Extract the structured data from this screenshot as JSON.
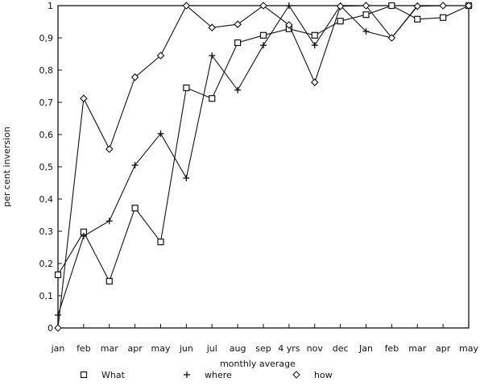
{
  "chart_data": {
    "type": "line",
    "title": "",
    "xlabel": "monthly average",
    "ylabel": "per cent inversion",
    "categories": [
      "jan",
      "feb",
      "mar",
      "apr",
      "may",
      "jun",
      "jul",
      "aug",
      "sep",
      "4 yrs",
      "nov",
      "dec",
      "Jan",
      "feb",
      "mar",
      "apr",
      "may"
    ],
    "ylim": [
      0,
      1
    ],
    "yticks": [
      "0",
      "0,1",
      "0,2",
      "0,3",
      "0,4",
      "0,5",
      "0,6",
      "0,7",
      "0,8",
      "0,9",
      "1"
    ],
    "grid": false,
    "legend": "bottom",
    "series": [
      {
        "name": "What",
        "marker": "square",
        "values": [
          0.165,
          0.298,
          0.145,
          0.372,
          0.267,
          0.745,
          0.712,
          0.885,
          0.908,
          0.928,
          0.908,
          0.952,
          0.972,
          1.0,
          0.958,
          0.963,
          1.0
        ]
      },
      {
        "name": "where",
        "marker": "plus",
        "values": [
          0.04,
          0.285,
          0.332,
          0.505,
          0.603,
          0.465,
          0.845,
          0.738,
          0.877,
          1.0,
          0.877,
          1.0,
          0.92,
          0.9,
          1.0,
          1.0,
          1.0
        ]
      },
      {
        "name": "how",
        "marker": "diamond",
        "values": [
          0.0,
          0.712,
          0.555,
          0.778,
          0.845,
          1.0,
          0.932,
          0.942,
          1.0,
          0.94,
          0.762,
          0.998,
          1.0,
          0.9,
          0.998,
          1.0,
          1.0
        ]
      }
    ],
    "colors": {
      "axis": "#111111",
      "line": "#111111",
      "marker_fill": "#ffffff"
    }
  }
}
